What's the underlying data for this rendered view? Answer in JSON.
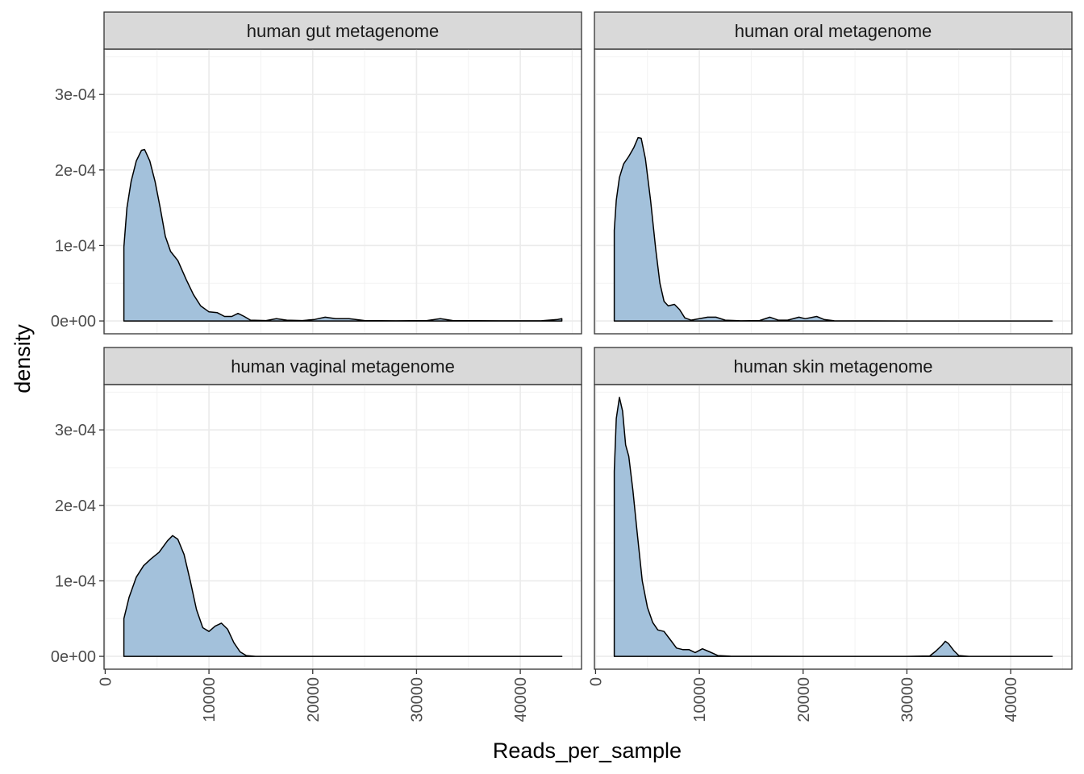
{
  "chart_data": {
    "type": "area",
    "facets": [
      {
        "label": "human gut metagenome",
        "points": [
          [
            1800,
            9.8e-05
          ],
          [
            2100,
            0.00015
          ],
          [
            2500,
            0.000185
          ],
          [
            3000,
            0.000212
          ],
          [
            3500,
            0.000226
          ],
          [
            3800,
            0.000227
          ],
          [
            4300,
            0.000212
          ],
          [
            4800,
            0.000185
          ],
          [
            5300,
            0.00015
          ],
          [
            5800,
            0.000112
          ],
          [
            6300,
            9.2e-05
          ],
          [
            7000,
            8e-05
          ],
          [
            7800,
            5.5e-05
          ],
          [
            8500,
            3.5e-05
          ],
          [
            9200,
            2e-05
          ],
          [
            10000,
            1.2e-05
          ],
          [
            10800,
            1.1e-05
          ],
          [
            11500,
            6e-06
          ],
          [
            12200,
            6e-06
          ],
          [
            12800,
            1e-05
          ],
          [
            13400,
            6e-06
          ],
          [
            14000,
            1e-06
          ],
          [
            15500,
            5e-07
          ],
          [
            16500,
            3e-06
          ],
          [
            17500,
            1e-06
          ],
          [
            19000,
            5e-07
          ],
          [
            20200,
            2e-06
          ],
          [
            21200,
            5e-06
          ],
          [
            22200,
            3e-06
          ],
          [
            23500,
            3e-06
          ],
          [
            25000,
            5e-07
          ],
          [
            28000,
            2e-07
          ],
          [
            31000,
            5e-07
          ],
          [
            32300,
            3e-06
          ],
          [
            33500,
            5e-07
          ],
          [
            38000,
            2e-07
          ],
          [
            42000,
            2e-07
          ],
          [
            43600,
            2e-06
          ],
          [
            44000,
            3e-06
          ]
        ]
      },
      {
        "label": "human oral metagenome",
        "points": [
          [
            1800,
            0.00012
          ],
          [
            2000,
            0.00016
          ],
          [
            2300,
            0.00019
          ],
          [
            2700,
            0.000208
          ],
          [
            3200,
            0.000218
          ],
          [
            3700,
            0.00023
          ],
          [
            4100,
            0.000243
          ],
          [
            4400,
            0.000242
          ],
          [
            4800,
            0.000215
          ],
          [
            5300,
            0.00016
          ],
          [
            5800,
            9.5e-05
          ],
          [
            6200,
            5e-05
          ],
          [
            6600,
            2.6e-05
          ],
          [
            7000,
            2e-05
          ],
          [
            7600,
            2.2e-05
          ],
          [
            8100,
            1.5e-05
          ],
          [
            8600,
            4e-06
          ],
          [
            9200,
            1e-06
          ],
          [
            10000,
            3e-06
          ],
          [
            10800,
            5e-06
          ],
          [
            11600,
            5e-06
          ],
          [
            12500,
            1e-06
          ],
          [
            14000,
            2e-07
          ],
          [
            15800,
            5e-07
          ],
          [
            16800,
            5e-06
          ],
          [
            17600,
            1e-06
          ],
          [
            18500,
            1e-06
          ],
          [
            19600,
            5e-06
          ],
          [
            20200,
            3e-06
          ],
          [
            21300,
            6e-06
          ],
          [
            22000,
            2e-06
          ],
          [
            23000,
            2e-07
          ],
          [
            30000,
            0
          ],
          [
            40000,
            0
          ],
          [
            44000,
            0
          ]
        ]
      },
      {
        "label": "human vaginal metagenome",
        "points": [
          [
            1800,
            5e-05
          ],
          [
            2300,
            7.8e-05
          ],
          [
            3000,
            0.000105
          ],
          [
            3700,
            0.00012
          ],
          [
            4400,
            0.000129
          ],
          [
            5200,
            0.000138
          ],
          [
            6000,
            0.000153
          ],
          [
            6500,
            0.00016
          ],
          [
            7000,
            0.000155
          ],
          [
            7600,
            0.000135
          ],
          [
            8200,
            0.0001
          ],
          [
            8800,
            6.2e-05
          ],
          [
            9400,
            3.8e-05
          ],
          [
            10000,
            3.3e-05
          ],
          [
            10600,
            4e-05
          ],
          [
            11200,
            4.4e-05
          ],
          [
            11800,
            3.6e-05
          ],
          [
            12400,
            1.8e-05
          ],
          [
            13000,
            6e-06
          ],
          [
            13600,
            1e-06
          ],
          [
            14500,
            0
          ],
          [
            20000,
            0
          ],
          [
            30000,
            0
          ],
          [
            44000,
            0
          ]
        ]
      },
      {
        "label": "human skin metagenome",
        "points": [
          [
            1800,
            0.000245
          ],
          [
            2000,
            0.000315
          ],
          [
            2300,
            0.000343
          ],
          [
            2600,
            0.000325
          ],
          [
            2900,
            0.00028
          ],
          [
            3200,
            0.000265
          ],
          [
            3600,
            0.00022
          ],
          [
            4000,
            0.000165
          ],
          [
            4500,
            0.0001
          ],
          [
            5000,
            6.5e-05
          ],
          [
            5500,
            4.5e-05
          ],
          [
            6000,
            3.5e-05
          ],
          [
            6600,
            3.3e-05
          ],
          [
            7200,
            2.2e-05
          ],
          [
            7800,
            1.1e-05
          ],
          [
            8400,
            9e-06
          ],
          [
            9000,
            9e-06
          ],
          [
            9600,
            5e-06
          ],
          [
            10300,
            1e-05
          ],
          [
            11000,
            6e-06
          ],
          [
            11800,
            1e-06
          ],
          [
            13000,
            2e-07
          ],
          [
            20000,
            0
          ],
          [
            30000,
            0
          ],
          [
            32200,
            5e-07
          ],
          [
            32800,
            7e-06
          ],
          [
            33400,
            1.5e-05
          ],
          [
            33700,
            2e-05
          ],
          [
            34000,
            1.7e-05
          ],
          [
            34500,
            8e-06
          ],
          [
            35000,
            1e-06
          ],
          [
            36000,
            0
          ],
          [
            44000,
            0
          ]
        ]
      }
    ],
    "x_ticks": [
      0,
      10000,
      20000,
      30000,
      40000
    ],
    "x_tick_labels": [
      "0",
      "10000",
      "20000",
      "30000",
      "40000"
    ],
    "y_ticks": [
      0,
      0.0001,
      0.0002,
      0.0003
    ],
    "y_tick_labels": [
      "0e+00",
      "1e-04",
      "2e-04",
      "3e-04"
    ],
    "xlim": [
      -110,
      45900
    ],
    "ylim": [
      -1.7e-05,
      0.00036
    ],
    "xlabel": "Reads_per_sample",
    "ylabel": "density",
    "grid": true,
    "fill_color": "#a3c1db",
    "line_color": "#000000"
  }
}
